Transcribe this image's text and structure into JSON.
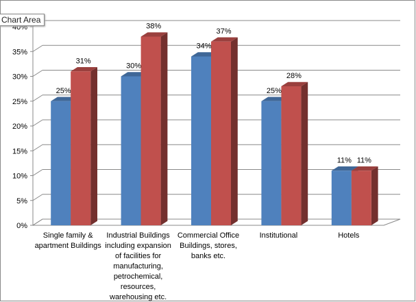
{
  "tooltip": "Chart Area",
  "chart_data": {
    "type": "bar3d",
    "categories": [
      "Single family & apartment Buildings",
      "Industrial Buildings including expansion of facilities for manufacturing, petrochemical, resources, warehousing etc.",
      "Commercial Office Buildings, stores, banks etc.",
      "Institutional",
      "Hotels"
    ],
    "series": [
      {
        "color": "#4f81bd",
        "values": [
          25,
          30,
          34,
          25,
          11
        ],
        "value_labels": [
          "25%",
          "30%",
          "34%",
          "25%",
          "11%"
        ]
      },
      {
        "color": "#c0504d",
        "values": [
          31,
          38,
          37,
          28,
          11
        ],
        "value_labels": [
          "31%",
          "38%",
          "37%",
          "28%",
          "11%"
        ]
      }
    ],
    "ylim": [
      0,
      40
    ],
    "yticks": [
      {
        "value": 0,
        "label": "0%"
      },
      {
        "value": 5,
        "label": "5%"
      },
      {
        "value": 10,
        "label": "10%"
      },
      {
        "value": 15,
        "label": "15%"
      },
      {
        "value": 20,
        "label": "20%"
      },
      {
        "value": 25,
        "label": "25%"
      },
      {
        "value": 30,
        "label": "30%"
      },
      {
        "value": 35,
        "label": "35%"
      },
      {
        "value": 40,
        "label": "40%"
      }
    ],
    "grid": true
  }
}
